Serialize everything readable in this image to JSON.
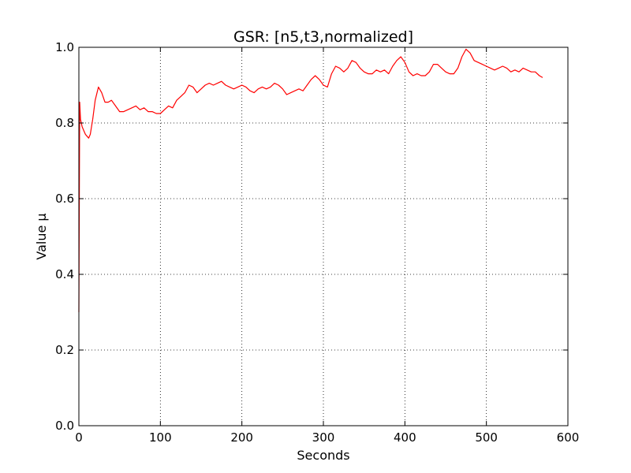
{
  "chart_data": {
    "type": "line",
    "title": "GSR: [n5,t3,normalized]",
    "xlabel": "Seconds",
    "ylabel": "Value μ",
    "xlim": [
      0,
      600
    ],
    "ylim": [
      0.0,
      1.0
    ],
    "xticks": [
      0,
      100,
      200,
      300,
      400,
      500,
      600
    ],
    "xtick_labels": [
      "0",
      "100",
      "200",
      "300",
      "400",
      "500",
      "600"
    ],
    "yticks": [
      0.0,
      0.2,
      0.4,
      0.6,
      0.8,
      1.0
    ],
    "ytick_labels": [
      "0.0",
      "0.2",
      "0.4",
      "0.6",
      "0.8",
      "1.0"
    ],
    "grid": true,
    "line_color": "#ff0000",
    "series": [
      {
        "x": [
          0,
          1,
          2,
          4,
          6,
          8,
          10,
          12,
          14,
          17,
          20,
          24,
          28,
          32,
          36,
          40,
          45,
          50,
          55,
          60,
          65,
          70,
          75,
          80,
          85,
          90,
          95,
          100,
          105,
          110,
          115,
          120,
          125,
          130,
          135,
          140,
          145,
          150,
          155,
          160,
          165,
          170,
          175,
          180,
          185,
          190,
          195,
          200,
          205,
          210,
          215,
          220,
          225,
          230,
          235,
          240,
          245,
          250,
          255,
          260,
          265,
          270,
          275,
          280,
          285,
          290,
          295,
          300,
          305,
          310,
          315,
          320,
          325,
          330,
          335,
          340,
          345,
          350,
          355,
          360,
          365,
          370,
          375,
          380,
          385,
          390,
          395,
          400,
          405,
          410,
          415,
          420,
          425,
          430,
          435,
          440,
          445,
          450,
          455,
          460,
          465,
          470,
          475,
          480,
          485,
          490,
          495,
          500,
          505,
          510,
          515,
          520,
          525,
          530,
          535,
          540,
          545,
          550,
          555,
          560,
          565,
          569
        ],
        "y": [
          0.3,
          0.855,
          0.81,
          0.79,
          0.78,
          0.77,
          0.765,
          0.76,
          0.77,
          0.81,
          0.86,
          0.895,
          0.88,
          0.855,
          0.855,
          0.86,
          0.845,
          0.83,
          0.83,
          0.835,
          0.84,
          0.845,
          0.835,
          0.84,
          0.83,
          0.83,
          0.825,
          0.825,
          0.835,
          0.845,
          0.84,
          0.86,
          0.87,
          0.88,
          0.9,
          0.895,
          0.88,
          0.89,
          0.9,
          0.905,
          0.9,
          0.905,
          0.91,
          0.9,
          0.895,
          0.89,
          0.895,
          0.9,
          0.895,
          0.885,
          0.88,
          0.89,
          0.895,
          0.89,
          0.895,
          0.905,
          0.9,
          0.89,
          0.875,
          0.88,
          0.885,
          0.89,
          0.885,
          0.9,
          0.915,
          0.925,
          0.915,
          0.9,
          0.895,
          0.93,
          0.95,
          0.945,
          0.935,
          0.945,
          0.965,
          0.96,
          0.945,
          0.935,
          0.93,
          0.93,
          0.94,
          0.935,
          0.94,
          0.93,
          0.95,
          0.965,
          0.975,
          0.96,
          0.935,
          0.925,
          0.93,
          0.925,
          0.925,
          0.935,
          0.955,
          0.955,
          0.945,
          0.935,
          0.93,
          0.93,
          0.945,
          0.975,
          0.995,
          0.985,
          0.965,
          0.96,
          0.955,
          0.95,
          0.945,
          0.94,
          0.945,
          0.95,
          0.945,
          0.935,
          0.94,
          0.935,
          0.945,
          0.94,
          0.935,
          0.935,
          0.925,
          0.92
        ]
      }
    ]
  }
}
